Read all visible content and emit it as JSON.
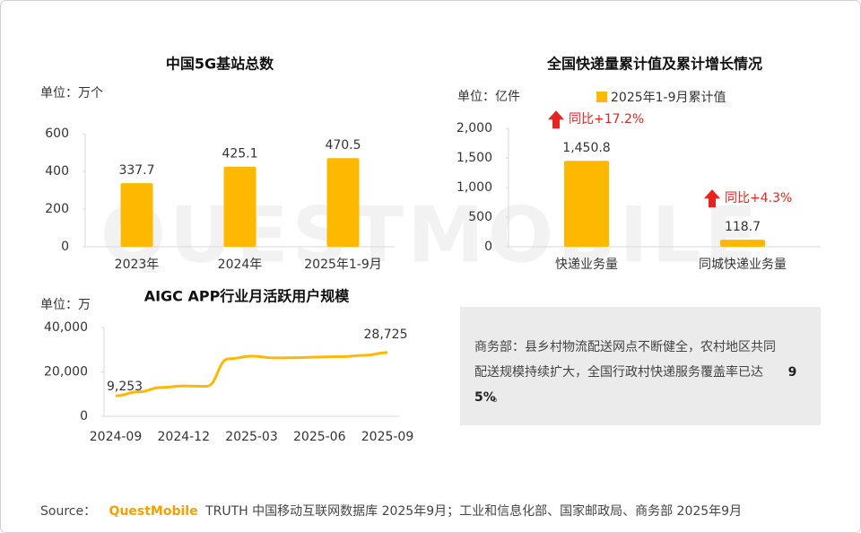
{
  "watermark": "QUESTMOBILE",
  "chart_data": [
    {
      "type": "bar",
      "title": "中国5G基站总数",
      "unit": "单位：万个",
      "categories": [
        "2023年",
        "2024年",
        "2025年1-9月"
      ],
      "values": [
        337.7,
        425.1,
        470.5
      ],
      "color": "#fcb900",
      "ylim": [
        0,
        600
      ],
      "yticks": [
        0,
        200,
        400,
        600
      ]
    },
    {
      "type": "bar",
      "title": "全国快递量累计值及累计增长情况",
      "unit": "单位：亿件",
      "categories": [
        "快递业务量",
        "同城快递业务量"
      ],
      "series": [
        {
          "name": "2025年1-9月累计值",
          "color": "#fcb900",
          "values": [
            1450.8,
            118.7
          ],
          "value_labels": [
            "1,450.8",
            "118.7"
          ]
        }
      ],
      "annotations": [
        "同比+17.2%",
        "同比+4.3%"
      ],
      "annotation_color": "#e8231f",
      "ylim": [
        0,
        2000
      ],
      "yticks": [
        0,
        500,
        {
          "value": 1000,
          "label": "1,000"
        },
        {
          "value": 1500,
          "label": "1,500"
        },
        {
          "value": 2000,
          "label": "2,000"
        }
      ]
    },
    {
      "type": "line",
      "title": "AIGC APP行业月活跃用户规模",
      "unit": "单位：万",
      "categories": [
        "2024-09",
        null,
        null,
        "2024-12",
        null,
        null,
        "2025-03",
        null,
        null,
        "2025-06",
        null,
        null,
        "2025-09"
      ],
      "values": [
        9253,
        11000,
        13000,
        13700,
        13500,
        25900,
        27100,
        26300,
        26400,
        26700,
        26900,
        27500,
        28725
      ],
      "value_labels": [
        "9,253",
        null,
        null,
        null,
        null,
        null,
        null,
        null,
        null,
        null,
        null,
        null,
        "28,725"
      ],
      "color": "#fcb900",
      "ylim": [
        0,
        40000
      ],
      "yticks": [
        0,
        {
          "value": 20000,
          "label": "20,000"
        },
        {
          "value": 40000,
          "label": "40,000"
        }
      ]
    }
  ],
  "note": {
    "parts": [
      "商务部：县乡村物流配送网点不断健全，农村地区共同配送规模持续扩大，全国行政村快递服务覆盖率已达",
      "95%",
      "。"
    ]
  },
  "source": {
    "label": "Source：",
    "brand": "QuestMobile",
    "text": "TRUTH 中国移动互联网数据库 2025年9月；工业和信息化部、国家邮政局、商务部 2025年9月"
  }
}
